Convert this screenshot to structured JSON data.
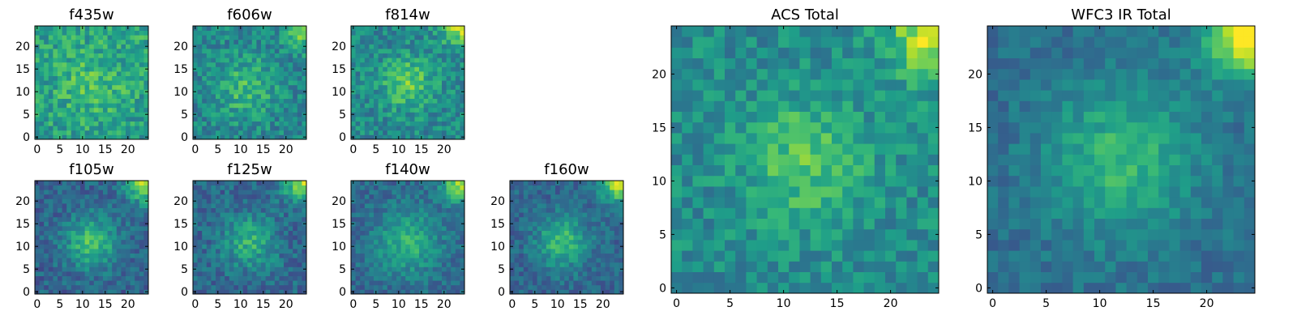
{
  "chart_data": [
    {
      "type": "heatmap",
      "title": "f435w",
      "grid": false,
      "xlim": [
        -0.5,
        24.5
      ],
      "ylim": [
        -0.5,
        24.5
      ],
      "xticks": [
        0,
        5,
        10,
        15,
        20
      ],
      "yticks": [
        0,
        5,
        10,
        15,
        20
      ],
      "grid_size": [
        25,
        25
      ],
      "colormap": "viridis",
      "pattern": {
        "peak": [
          12,
          12
        ],
        "width": 6,
        "amp": 0.14,
        "corner_amp": 0.05,
        "noise": 0.32,
        "base": 0.55,
        "seed": 11
      }
    },
    {
      "type": "heatmap",
      "title": "f606w",
      "grid": false,
      "xlim": [
        -0.5,
        24.5
      ],
      "ylim": [
        -0.5,
        24.5
      ],
      "xticks": [
        0,
        5,
        10,
        15,
        20
      ],
      "yticks": [
        0,
        5,
        10,
        15,
        20
      ],
      "grid_size": [
        25,
        25
      ],
      "colormap": "viridis",
      "pattern": {
        "peak": [
          11,
          11
        ],
        "width": 5,
        "amp": 0.22,
        "corner_amp": 0.38,
        "noise": 0.3,
        "base": 0.45,
        "seed": 23
      }
    },
    {
      "type": "heatmap",
      "title": "f814w",
      "grid": false,
      "xlim": [
        -0.5,
        24.5
      ],
      "ylim": [
        -0.5,
        24.5
      ],
      "xticks": [
        0,
        5,
        10,
        15,
        20
      ],
      "yticks": [
        0,
        5,
        10,
        15,
        20
      ],
      "grid_size": [
        25,
        25
      ],
      "colormap": "viridis",
      "pattern": {
        "peak": [
          12,
          12
        ],
        "width": 4,
        "amp": 0.28,
        "corner_amp": 0.4,
        "noise": 0.3,
        "base": 0.47,
        "seed": 37
      }
    },
    {
      "type": "heatmap",
      "title": "f105w",
      "grid": false,
      "xlim": [
        -0.5,
        24.5
      ],
      "ylim": [
        -0.5,
        24.5
      ],
      "xticks": [
        0,
        5,
        10,
        15,
        20
      ],
      "yticks": [
        0,
        5,
        10,
        15,
        20
      ],
      "grid_size": [
        25,
        25
      ],
      "colormap": "viridis",
      "pattern": {
        "peak": [
          12,
          11
        ],
        "width": 4,
        "amp": 0.38,
        "corner_amp": 0.55,
        "noise": 0.24,
        "base": 0.32,
        "seed": 41
      }
    },
    {
      "type": "heatmap",
      "title": "f125w",
      "grid": false,
      "xlim": [
        -0.5,
        24.5
      ],
      "ylim": [
        -0.5,
        24.5
      ],
      "xticks": [
        0,
        5,
        10,
        15,
        20
      ],
      "yticks": [
        0,
        5,
        10,
        15,
        20
      ],
      "grid_size": [
        25,
        25
      ],
      "colormap": "viridis",
      "pattern": {
        "peak": [
          12,
          11
        ],
        "width": 4,
        "amp": 0.3,
        "corner_amp": 0.55,
        "noise": 0.26,
        "base": 0.34,
        "seed": 53
      }
    },
    {
      "type": "heatmap",
      "title": "f140w",
      "grid": false,
      "xlim": [
        -0.5,
        24.5
      ],
      "ylim": [
        -0.5,
        24.5
      ],
      "xticks": [
        0,
        5,
        10,
        15,
        20
      ],
      "yticks": [
        0,
        5,
        10,
        15,
        20
      ],
      "grid_size": [
        25,
        25
      ],
      "colormap": "viridis",
      "pattern": {
        "peak": [
          12,
          11
        ],
        "width": 5,
        "amp": 0.3,
        "corner_amp": 0.55,
        "noise": 0.22,
        "base": 0.34,
        "seed": 67
      }
    },
    {
      "type": "heatmap",
      "title": "f160w",
      "grid": false,
      "xlim": [
        -0.5,
        24.5
      ],
      "ylim": [
        -0.5,
        24.5
      ],
      "xticks": [
        0,
        5,
        10,
        15,
        20
      ],
      "yticks": [
        0,
        5,
        10,
        15,
        20
      ],
      "grid_size": [
        25,
        25
      ],
      "colormap": "viridis",
      "pattern": {
        "peak": [
          11,
          11
        ],
        "width": 4,
        "amp": 0.35,
        "corner_amp": 0.6,
        "noise": 0.22,
        "base": 0.33,
        "seed": 79
      }
    },
    {
      "type": "heatmap",
      "title": "ACS Total",
      "grid": false,
      "xlim": [
        -0.5,
        24.5
      ],
      "ylim": [
        -0.5,
        24.5
      ],
      "xticks": [
        0,
        5,
        10,
        15,
        20
      ],
      "yticks": [
        0,
        5,
        10,
        15,
        20
      ],
      "grid_size": [
        25,
        25
      ],
      "colormap": "viridis",
      "pattern": {
        "peak": [
          12,
          12
        ],
        "width": 4,
        "amp": 0.25,
        "corner_amp": 0.45,
        "noise": 0.26,
        "base": 0.48,
        "seed": 97
      }
    },
    {
      "type": "heatmap",
      "title": "WFC3 IR Total",
      "grid": false,
      "xlim": [
        -0.5,
        24.5
      ],
      "ylim": [
        -0.5,
        24.5
      ],
      "xticks": [
        0,
        5,
        10,
        15,
        20
      ],
      "yticks": [
        0,
        5,
        10,
        15,
        20
      ],
      "grid_size": [
        25,
        25
      ],
      "colormap": "viridis",
      "pattern": {
        "peak": [
          12,
          12
        ],
        "width": 5,
        "amp": 0.3,
        "corner_amp": 0.65,
        "noise": 0.18,
        "base": 0.36,
        "seed": 113
      }
    }
  ]
}
